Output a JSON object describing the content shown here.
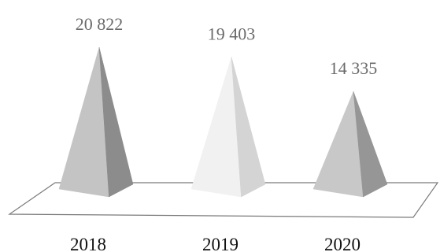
{
  "chart_data": {
    "type": "bar",
    "bar_shape": "3d-pyramid",
    "categories": [
      "2018",
      "2019",
      "2020"
    ],
    "values": [
      20822,
      19403,
      14335
    ],
    "value_labels": [
      "20 822",
      "19 403",
      "14 335"
    ],
    "ylim": [
      0,
      22000
    ],
    "grid": false,
    "legend": "none",
    "colors": {
      "pyramid_light": [
        "#c4c4c4",
        "#f1f1f1",
        "#c8c8c8"
      ],
      "pyramid_dark": [
        "#8c8c8c",
        "#d4d4d4",
        "#969696"
      ],
      "floor_stroke": "#7a7a7a"
    }
  }
}
